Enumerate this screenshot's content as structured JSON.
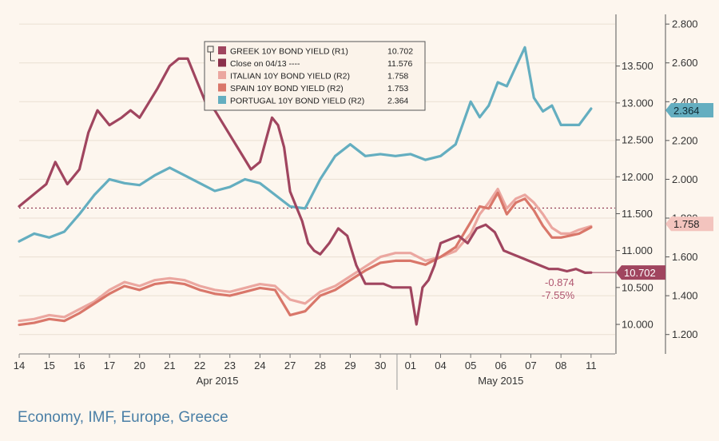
{
  "chart_data": {
    "type": "line",
    "background": "#fdf6ee",
    "x_ticks": [
      "14",
      "15",
      "16",
      "17",
      "20",
      "21",
      "22",
      "23",
      "24",
      "27",
      "28",
      "29",
      "30",
      "01",
      "04",
      "05",
      "06",
      "07",
      "08",
      "11"
    ],
    "month_labels": [
      "Apr 2015",
      "May 2015"
    ],
    "left_axis": {
      "ticks": [
        "10.000",
        "10.500",
        "11.000",
        "11.500",
        "12.000",
        "12.500",
        "13.000",
        "13.500"
      ],
      "range": [
        9.6,
        14.2
      ]
    },
    "right_axis": {
      "ticks": [
        "1.200",
        "1.400",
        "1.600",
        "1.800",
        "2.000",
        "2.200",
        "2.400",
        "2.600",
        "2.800"
      ],
      "range": [
        1.1,
        2.85
      ]
    },
    "reference_line": {
      "label": "Close on 04/13 ----",
      "value": 11.576
    },
    "series": [
      {
        "name": "GREEK 10Y BOND YIELD (R1)",
        "value_label": "10.702",
        "color": "#a0455f",
        "axis": "left",
        "x": [
          0,
          0.3,
          0.6,
          0.9,
          1.2,
          1.6,
          2.0,
          2.3,
          2.6,
          3.0,
          3.4,
          3.7,
          4.0,
          4.3,
          4.6,
          5.0,
          5.3,
          5.6,
          5.9,
          6.2,
          6.5,
          6.8,
          7.1,
          7.4,
          7.7,
          8.0,
          8.2,
          8.4,
          8.6,
          8.8,
          9.0,
          9.2,
          9.4,
          9.6,
          9.8,
          10.0,
          10.3,
          10.6,
          10.9,
          11.2,
          11.5,
          11.8,
          12.1,
          12.4,
          12.7,
          13.0,
          13.2,
          13.4,
          13.6,
          13.8,
          14.0,
          14.3,
          14.6,
          14.9,
          15.2,
          15.5,
          15.8,
          16.1,
          16.4,
          16.7,
          17.0,
          17.3,
          17.6,
          17.9,
          18.2,
          18.5,
          18.8,
          19.0
        ],
        "values": [
          11.6,
          11.7,
          11.8,
          11.9,
          12.2,
          11.9,
          12.1,
          12.6,
          12.9,
          12.7,
          12.8,
          12.9,
          12.8,
          13.0,
          13.2,
          13.5,
          13.6,
          13.6,
          13.3,
          13.0,
          12.9,
          12.7,
          12.5,
          12.3,
          12.1,
          12.2,
          12.5,
          12.8,
          12.7,
          12.4,
          11.8,
          11.6,
          11.4,
          11.1,
          11.0,
          10.95,
          11.1,
          11.3,
          11.2,
          10.8,
          10.55,
          10.55,
          10.55,
          10.5,
          10.5,
          10.5,
          10.0,
          10.5,
          10.6,
          10.8,
          11.1,
          11.15,
          11.2,
          11.1,
          11.3,
          11.35,
          11.25,
          11.0,
          10.95,
          10.9,
          10.85,
          10.8,
          10.75,
          10.75,
          10.72,
          10.75,
          10.7,
          10.702
        ]
      },
      {
        "name": "ITALIAN 10Y BOND YIELD (R2)",
        "value_label": "1.758",
        "color": "#eba7a0",
        "axis": "right",
        "x": [
          0,
          0.5,
          1.0,
          1.5,
          2.0,
          2.5,
          3.0,
          3.5,
          4.0,
          4.5,
          5.0,
          5.5,
          6.0,
          6.5,
          7.0,
          7.5,
          8.0,
          8.5,
          9.0,
          9.5,
          10.0,
          10.5,
          11.0,
          11.5,
          12.0,
          12.5,
          13.0,
          13.5,
          14.0,
          14.5,
          15.0,
          15.3,
          15.6,
          15.9,
          16.2,
          16.5,
          16.8,
          17.1,
          17.4,
          17.7,
          18.0,
          18.3,
          18.6,
          19.0
        ],
        "values": [
          1.27,
          1.28,
          1.3,
          1.29,
          1.33,
          1.37,
          1.43,
          1.47,
          1.45,
          1.48,
          1.49,
          1.48,
          1.45,
          1.43,
          1.42,
          1.44,
          1.46,
          1.45,
          1.38,
          1.36,
          1.42,
          1.45,
          1.5,
          1.55,
          1.6,
          1.62,
          1.62,
          1.58,
          1.6,
          1.63,
          1.72,
          1.82,
          1.88,
          1.95,
          1.85,
          1.9,
          1.92,
          1.88,
          1.82,
          1.75,
          1.72,
          1.72,
          1.74,
          1.758
        ]
      },
      {
        "name": "SPAIN 10Y BOND YIELD (R2)",
        "value_label": "1.753",
        "color": "#d9776a",
        "axis": "right",
        "x": [
          0,
          0.5,
          1.0,
          1.5,
          2.0,
          2.5,
          3.0,
          3.5,
          4.0,
          4.5,
          5.0,
          5.5,
          6.0,
          6.5,
          7.0,
          7.5,
          8.0,
          8.5,
          9.0,
          9.5,
          10.0,
          10.5,
          11.0,
          11.5,
          12.0,
          12.5,
          13.0,
          13.5,
          14.0,
          14.5,
          15.0,
          15.3,
          15.6,
          15.9,
          16.2,
          16.5,
          16.8,
          17.1,
          17.4,
          17.7,
          18.0,
          18.3,
          18.6,
          19.0
        ],
        "values": [
          1.25,
          1.26,
          1.28,
          1.27,
          1.31,
          1.36,
          1.41,
          1.45,
          1.43,
          1.46,
          1.47,
          1.46,
          1.43,
          1.41,
          1.4,
          1.42,
          1.44,
          1.43,
          1.3,
          1.32,
          1.4,
          1.43,
          1.48,
          1.53,
          1.57,
          1.58,
          1.58,
          1.56,
          1.6,
          1.65,
          1.78,
          1.86,
          1.85,
          1.93,
          1.82,
          1.88,
          1.9,
          1.84,
          1.76,
          1.7,
          1.7,
          1.71,
          1.72,
          1.753
        ]
      },
      {
        "name": "PORTUGAL 10Y BOND YIELD (R2)",
        "value_label": "2.364",
        "color": "#64aec0",
        "axis": "right",
        "x": [
          0,
          0.5,
          1.0,
          1.5,
          2.0,
          2.5,
          3.0,
          3.5,
          4.0,
          4.5,
          5.0,
          5.5,
          6.0,
          6.5,
          7.0,
          7.5,
          8.0,
          8.5,
          9.0,
          9.5,
          10.0,
          10.5,
          11.0,
          11.5,
          12.0,
          12.5,
          13.0,
          13.5,
          14.0,
          14.5,
          15.0,
          15.3,
          15.6,
          15.9,
          16.2,
          16.5,
          16.8,
          17.1,
          17.4,
          17.7,
          18.0,
          18.3,
          18.6,
          19.0
        ],
        "values": [
          1.68,
          1.72,
          1.7,
          1.73,
          1.82,
          1.92,
          2.0,
          1.98,
          1.97,
          2.02,
          2.06,
          2.02,
          1.98,
          1.94,
          1.96,
          2.0,
          1.98,
          1.92,
          1.86,
          1.85,
          2.0,
          2.12,
          2.18,
          2.12,
          2.13,
          2.12,
          2.13,
          2.1,
          2.12,
          2.18,
          2.4,
          2.32,
          2.38,
          2.5,
          2.48,
          2.58,
          2.68,
          2.42,
          2.35,
          2.38,
          2.28,
          2.28,
          2.28,
          2.364
        ]
      }
    ],
    "change_labels": [
      "-0.874",
      "-7.55%"
    ]
  },
  "caption": "Economy, IMF, Europe, Greece"
}
